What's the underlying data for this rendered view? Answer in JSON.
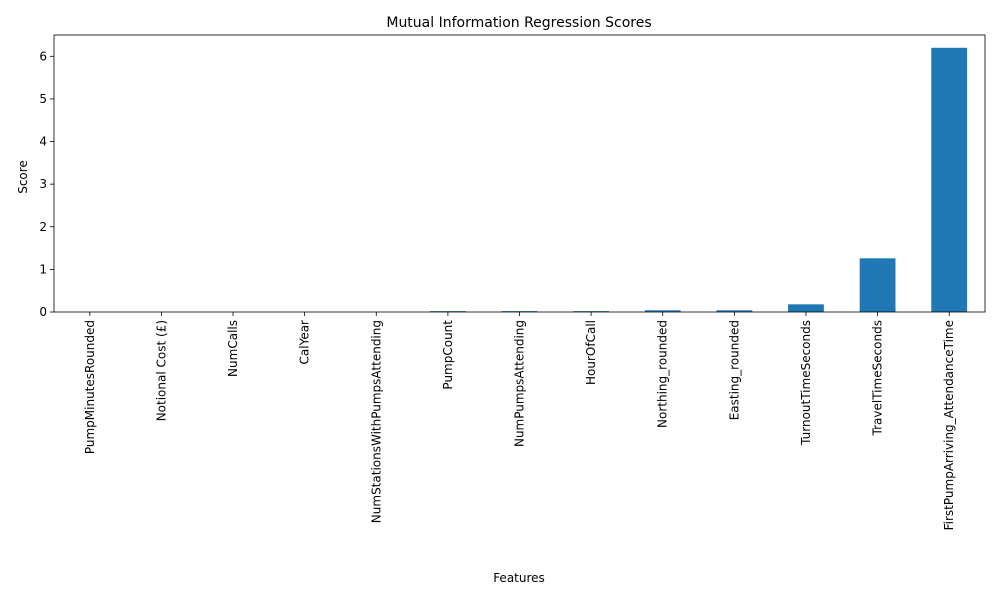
{
  "chart_data": {
    "type": "bar",
    "title": "Mutual Information Regression Scores",
    "xlabel": "Features",
    "ylabel": "Score",
    "categories": [
      "PumpMinutesRounded",
      "Notional Cost (£)",
      "NumCalls",
      "CalYear",
      "NumStationsWithPumpsAttending",
      "PumpCount",
      "NumPumpsAttending",
      "HourOfCall",
      "Northing_rounded",
      "Easting_rounded",
      "TurnoutTimeSeconds",
      "TravelTimeSeconds",
      "FirstPumpArriving_AttendanceTime"
    ],
    "values": [
      0.0,
      0.0,
      0.0,
      0.0,
      0.0,
      0.02,
      0.02,
      0.02,
      0.04,
      0.04,
      0.18,
      1.26,
      6.2
    ],
    "ylim": [
      0,
      6.5
    ],
    "yticks": [
      0,
      1,
      2,
      3,
      4,
      5,
      6
    ],
    "bar_color": "#1f77b4",
    "grid": false,
    "legend": "none"
  }
}
